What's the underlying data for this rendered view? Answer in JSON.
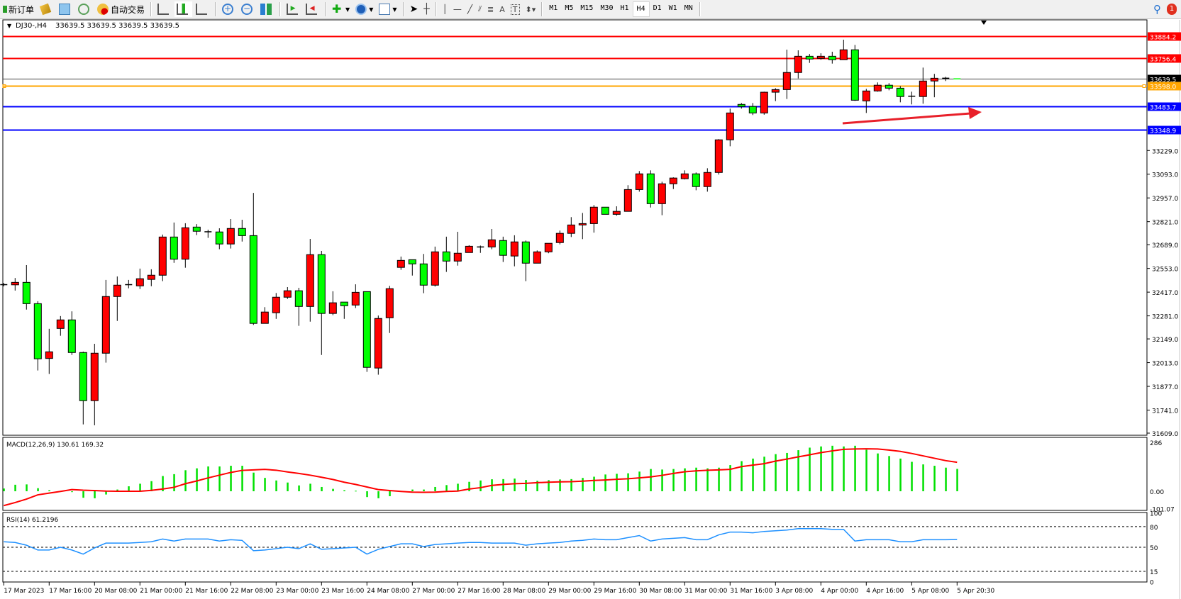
{
  "toolbar": {
    "new_order_label": "新订单",
    "auto_trading_label": "自动交易",
    "timeframes": [
      "M1",
      "M5",
      "M15",
      "M30",
      "H1",
      "H4",
      "D1",
      "W1",
      "MN"
    ],
    "active_timeframe": "H4",
    "notification_count": "1"
  },
  "chart_header": {
    "symbol": "DJ30-,H4",
    "ohlc": "33639.5 33639.5 33639.5 33639.5"
  },
  "colors": {
    "bull": "#ff0000",
    "bear": "#00ff00",
    "resistance": "#ff0000",
    "support": "#0000ff",
    "orange_level": "#ffa500",
    "macd_hist": "#00e000",
    "macd_signal": "#ff0000",
    "rsi": "#1e90ff",
    "arrow": "#e8202a"
  },
  "chart_data": [
    {
      "type": "candlestick",
      "symbol": "DJ30-",
      "timeframe": "H4",
      "ylim": [
        31609.0,
        33884.2
      ],
      "y_ticks": [
        "33229.0",
        "33093.0",
        "32957.0",
        "32821.0",
        "32689.0",
        "32553.0",
        "32417.0",
        "32281.0",
        "32149.0",
        "32013.0",
        "31877.0",
        "31741.0",
        "31609.0"
      ],
      "x_tick_labels": [
        "17 Mar 2023",
        "17 Mar 16:00",
        "20 Mar 08:00",
        "21 Mar 00:00",
        "21 Mar 16:00",
        "22 Mar 08:00",
        "23 Mar 00:00",
        "23 Mar 16:00",
        "24 Mar 08:00",
        "27 Mar 00:00",
        "27 Mar 16:00",
        "28 Mar 08:00",
        "29 Mar 00:00",
        "29 Mar 16:00",
        "30 Mar 08:00",
        "31 Mar 00:00",
        "31 Mar 16:00",
        "3 Apr 08:00",
        "4 Apr 00:00",
        "4 Apr 16:00",
        "5 Apr 08:00",
        "5 Apr 20:30"
      ],
      "levels": [
        {
          "price": "33884.2",
          "role": "resistance"
        },
        {
          "price": "33756.4",
          "role": "resistance"
        },
        {
          "price": "33639.5",
          "role": "current"
        },
        {
          "price": "33598.0",
          "role": "orange_level"
        },
        {
          "price": "33483.7",
          "role": "support"
        },
        {
          "price": "33348.9",
          "role": "support"
        }
      ],
      "arrow_annotation": {
        "from_price": 33340,
        "to_price": 33405,
        "direction": "up-right"
      },
      "ohlc": [
        [
          32460,
          32470,
          32450,
          32460
        ],
        [
          32459,
          32498,
          32426,
          32473
        ],
        [
          32473,
          32572,
          32317,
          32351
        ],
        [
          32351,
          32365,
          31968,
          32035
        ],
        [
          32037,
          32207,
          31948,
          32075
        ],
        [
          32209,
          32280,
          32167,
          32258
        ],
        [
          32258,
          32307,
          32057,
          32071
        ],
        [
          32071,
          32076,
          31659,
          31795
        ],
        [
          31795,
          32121,
          31654,
          32067
        ],
        [
          32067,
          32487,
          32013,
          32392
        ],
        [
          32392,
          32507,
          32252,
          32457
        ],
        [
          32460,
          32487,
          32439,
          32460
        ],
        [
          32453,
          32552,
          32435,
          32494
        ],
        [
          32490,
          32548,
          32451,
          32514
        ],
        [
          32514,
          32747,
          32480,
          32733
        ],
        [
          32733,
          32816,
          32585,
          32606
        ],
        [
          32606,
          32812,
          32557,
          32786
        ],
        [
          32790,
          32807,
          32744,
          32766
        ],
        [
          32763,
          32775,
          32728,
          32763
        ],
        [
          32762,
          32783,
          32663,
          32693
        ],
        [
          32693,
          32836,
          32667,
          32782
        ],
        [
          32782,
          32832,
          32707,
          32741
        ],
        [
          32741,
          32986,
          32229,
          32238
        ],
        [
          32238,
          32331,
          32238,
          32303
        ],
        [
          32299,
          32412,
          32264,
          32388
        ],
        [
          32388,
          32446,
          32378,
          32425
        ],
        [
          32425,
          32442,
          32224,
          32335
        ],
        [
          32335,
          32722,
          32248,
          32632
        ],
        [
          32632,
          32653,
          32057,
          32295
        ],
        [
          32295,
          32422,
          32285,
          32356
        ],
        [
          32360,
          32360,
          32264,
          32339
        ],
        [
          32343,
          32462,
          32326,
          32416
        ],
        [
          32420,
          32420,
          31960,
          31986
        ],
        [
          31982,
          32283,
          31944,
          32266
        ],
        [
          32270,
          32453,
          32183,
          32437
        ],
        [
          32559,
          32621,
          32545,
          32599
        ],
        [
          32603,
          32603,
          32512,
          32579
        ],
        [
          32579,
          32636,
          32411,
          32457
        ],
        [
          32457,
          32678,
          32449,
          32648
        ],
        [
          32648,
          32735,
          32533,
          32595
        ],
        [
          32595,
          32763,
          32569,
          32640
        ],
        [
          32644,
          32686,
          32644,
          32680
        ],
        [
          32676,
          32684,
          32642,
          32676
        ],
        [
          32676,
          32779,
          32663,
          32717
        ],
        [
          32713,
          32735,
          32590,
          32628
        ],
        [
          32624,
          32743,
          32565,
          32705
        ],
        [
          32705,
          32713,
          32480,
          32583
        ],
        [
          32583,
          32656,
          32583,
          32648
        ],
        [
          32648,
          32697,
          32640,
          32697
        ],
        [
          32701,
          32770,
          32691,
          32754
        ],
        [
          32754,
          32847,
          32733,
          32802
        ],
        [
          32802,
          32871,
          32721,
          32810
        ],
        [
          32810,
          32916,
          32758,
          32904
        ],
        [
          32904,
          32904,
          32863,
          32863
        ],
        [
          32863,
          32909,
          32855,
          32880
        ],
        [
          32880,
          33030,
          32880,
          33005
        ],
        [
          33005,
          33111,
          32993,
          33095
        ],
        [
          33095,
          33115,
          32902,
          32924
        ],
        [
          32924,
          33050,
          32858,
          33038
        ],
        [
          33038,
          33075,
          33008,
          33071
        ],
        [
          33067,
          33115,
          33063,
          33095
        ],
        [
          33095,
          33103,
          33001,
          33022
        ],
        [
          33022,
          33127,
          32993,
          33103
        ],
        [
          33103,
          33294,
          33091,
          33290
        ],
        [
          33290,
          33469,
          33253,
          33444
        ],
        [
          33493,
          33501,
          33469,
          33481
        ],
        [
          33481,
          33501,
          33432,
          33444
        ],
        [
          33444,
          33566,
          33434,
          33563
        ],
        [
          33563,
          33586,
          33512,
          33578
        ],
        [
          33578,
          33807,
          33524,
          33676
        ],
        [
          33676,
          33803,
          33642,
          33769
        ],
        [
          33769,
          33782,
          33731,
          33753
        ],
        [
          33757,
          33786,
          33749,
          33769
        ],
        [
          33769,
          33795,
          33727,
          33749
        ],
        [
          33749,
          33864,
          33749,
          33806
        ],
        [
          33806,
          33834,
          33513,
          33517
        ],
        [
          33513,
          33582,
          33444,
          33570
        ],
        [
          33570,
          33619,
          33566,
          33603
        ],
        [
          33603,
          33615,
          33574,
          33586
        ],
        [
          33586,
          33598,
          33505,
          33538
        ],
        [
          33540,
          33566,
          33493,
          33540
        ],
        [
          33538,
          33704,
          33497,
          33627
        ],
        [
          33627,
          33668,
          33534,
          33643
        ],
        [
          33643,
          33651,
          33627,
          33639.5
        ],
        [
          33639.5,
          33639.5,
          33639.5,
          33639.5
        ]
      ]
    },
    {
      "type": "bar+line",
      "title": "MACD(12,26,9) 130.61 169.32",
      "ylim": [
        -101.07,
        286
      ],
      "y_ticks": [
        "286",
        "0.00",
        "-101.07"
      ],
      "histogram": [
        16,
        38,
        40,
        18,
        6,
        1,
        -5,
        -38,
        -41,
        -19,
        10,
        29,
        44,
        59,
        89,
        100,
        123,
        134,
        145,
        145,
        149,
        149,
        109,
        78,
        63,
        51,
        34,
        44,
        25,
        14,
        6,
        3,
        -34,
        -41,
        -29,
        0,
        10,
        10,
        25,
        36,
        44,
        55,
        63,
        70,
        71,
        74,
        66,
        61,
        65,
        69,
        71,
        78,
        85,
        98,
        102,
        105,
        115,
        130,
        127,
        130,
        134,
        138,
        134,
        138,
        153,
        176,
        191,
        202,
        217,
        224,
        240,
        255,
        262,
        266,
        262,
        266,
        243,
        221,
        206,
        191,
        172,
        157,
        149,
        138,
        130.61
      ],
      "signal": [
        -84,
        -66,
        -46,
        -21,
        -11,
        -1,
        10,
        6,
        4,
        1,
        0,
        0,
        0,
        5,
        13,
        23,
        44,
        60,
        78,
        94,
        110,
        122,
        125,
        128,
        123,
        113,
        104,
        94,
        82,
        69,
        53,
        40,
        25,
        10,
        4,
        -1,
        -5,
        -6,
        -5,
        -1,
        1,
        13,
        21,
        34,
        40,
        44,
        46,
        50,
        53,
        55,
        56,
        59,
        63,
        66,
        70,
        73,
        78,
        84,
        93,
        104,
        114,
        119,
        123,
        125,
        128,
        144,
        153,
        161,
        176,
        188,
        201,
        213,
        226,
        236,
        245,
        247,
        248,
        247,
        241,
        233,
        221,
        207,
        193,
        179,
        169.32
      ]
    },
    {
      "type": "line",
      "title": "RSI(14) 61.2196",
      "ylim": [
        0,
        100
      ],
      "y_ticks": [
        "100",
        "80",
        "50",
        "15",
        "0"
      ],
      "levels": [
        80,
        50,
        15
      ],
      "values": [
        58,
        57,
        53,
        46,
        46,
        50,
        46,
        40,
        49,
        56,
        56,
        56,
        57,
        58,
        62,
        59,
        62,
        62,
        62,
        59,
        61,
        60,
        45,
        46,
        48,
        50,
        48,
        55,
        47,
        48,
        49,
        50,
        40,
        47,
        51,
        55,
        55,
        51,
        54,
        55,
        56,
        57,
        57,
        56,
        56,
        56,
        53,
        55,
        56,
        57,
        59,
        60,
        62,
        61,
        61,
        64,
        67,
        59,
        62,
        63,
        64,
        61,
        61,
        68,
        72,
        72,
        71,
        73,
        74,
        75,
        77,
        77,
        77,
        76,
        76,
        59,
        61,
        61,
        61,
        58,
        58,
        61,
        61,
        61,
        61.2196
      ]
    }
  ]
}
